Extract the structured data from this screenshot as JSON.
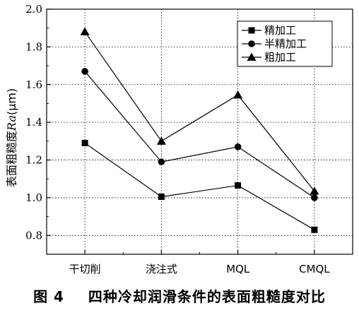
{
  "caption": {
    "figure_no": "图 4",
    "text": "四种冷却润滑条件的表面粗糙度对比"
  },
  "chart_data": {
    "type": "line",
    "title": "",
    "xlabel": "",
    "ylabel_main": "表面粗糙度",
    "ylabel_italic": "Ra",
    "ylabel_unit": "(μm)",
    "categories": [
      "干切削",
      "浇注式",
      "MQL",
      "CMQL"
    ],
    "ylim": [
      0.7,
      2.0
    ],
    "yticks": [
      0.8,
      1.0,
      1.2,
      1.4,
      1.6,
      1.8,
      2.0
    ],
    "ytick_labels": [
      "0.8",
      "1.0",
      "1.2",
      "1.4",
      "1.6",
      "1.8",
      "2.0"
    ],
    "grid": true,
    "legend_position": "top-right",
    "series": [
      {
        "name": "精加工",
        "marker": "square",
        "values": [
          1.29,
          1.005,
          1.065,
          0.83
        ]
      },
      {
        "name": "半精加工",
        "marker": "circle",
        "values": [
          1.67,
          1.19,
          1.27,
          1.0
        ]
      },
      {
        "name": "粗加工",
        "marker": "triangle",
        "values": [
          1.88,
          1.3,
          1.545,
          1.035
        ]
      }
    ]
  }
}
